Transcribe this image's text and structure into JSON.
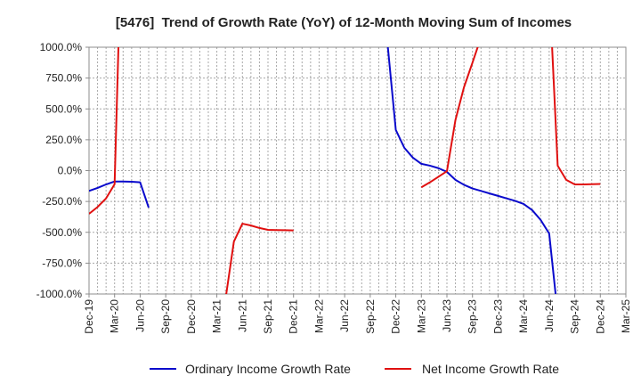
{
  "chart_data": {
    "type": "line",
    "title": "[5476]  Trend of Growth Rate (YoY) of 12-Month Moving Sum of Incomes",
    "xlabel": "",
    "ylabel": "",
    "xlim": [
      "Dec-19",
      "Mar-25"
    ],
    "ylim": [
      -1000,
      1000
    ],
    "grid": true,
    "legend": "bottom",
    "y_ticks": [
      {
        "value": 1000,
        "label": "1000.0%"
      },
      {
        "value": 750,
        "label": "750.0%"
      },
      {
        "value": 500,
        "label": "500.0%"
      },
      {
        "value": 250,
        "label": "250.0%"
      },
      {
        "value": 0,
        "label": "0.0%"
      },
      {
        "value": -250,
        "label": "-250.0%"
      },
      {
        "value": -500,
        "label": "-500.0%"
      },
      {
        "value": -750,
        "label": "-750.0%"
      },
      {
        "value": -1000,
        "label": "-1000.0%"
      }
    ],
    "x_tick_labels": [
      "Dec-19",
      "Mar-20",
      "Jun-20",
      "Sep-20",
      "Dec-20",
      "Mar-21",
      "Jun-21",
      "Sep-21",
      "Dec-21",
      "Mar-22",
      "Jun-22",
      "Sep-22",
      "Dec-22",
      "Mar-23",
      "Jun-23",
      "Sep-23",
      "Dec-23",
      "Mar-24",
      "Jun-24",
      "Sep-24",
      "Dec-24",
      "Mar-25"
    ],
    "x": [
      "Dec-19",
      "Jan-20",
      "Feb-20",
      "Mar-20",
      "Apr-20",
      "May-20",
      "Jun-20",
      "Jul-20",
      "Aug-20",
      "Sep-20",
      "Oct-20",
      "Nov-20",
      "Dec-20",
      "Jan-21",
      "Feb-21",
      "Mar-21",
      "Apr-21",
      "May-21",
      "Jun-21",
      "Jul-21",
      "Aug-21",
      "Sep-21",
      "Oct-21",
      "Nov-21",
      "Dec-21",
      "Jan-22",
      "Feb-22",
      "Mar-22",
      "Apr-22",
      "May-22",
      "Jun-22",
      "Jul-22",
      "Aug-22",
      "Sep-22",
      "Oct-22",
      "Nov-22",
      "Dec-22",
      "Jan-23",
      "Feb-23",
      "Mar-23",
      "Apr-23",
      "May-23",
      "Jun-23",
      "Jul-23",
      "Aug-23",
      "Sep-23",
      "Oct-23",
      "Nov-23",
      "Dec-23",
      "Jan-24",
      "Feb-24",
      "Mar-24",
      "Apr-24",
      "May-24",
      "Jun-24",
      "Jul-24",
      "Aug-24",
      "Sep-24",
      "Oct-24",
      "Nov-24",
      "Dec-24"
    ],
    "series": [
      {
        "name": "Ordinary Income Growth Rate",
        "color": "#0a0acc",
        "values": [
          -165,
          -140,
          -112,
          -88,
          -88,
          -90,
          -95,
          -300,
          null,
          null,
          null,
          null,
          null,
          null,
          null,
          null,
          null,
          null,
          null,
          null,
          null,
          null,
          null,
          null,
          null,
          null,
          null,
          null,
          null,
          null,
          null,
          null,
          null,
          null,
          null,
          1050,
          330,
          185,
          105,
          55,
          40,
          20,
          -10,
          -75,
          -115,
          -145,
          -165,
          -185,
          -205,
          -225,
          -245,
          -270,
          -320,
          -400,
          -510,
          -1160,
          null,
          null,
          null,
          null,
          null
        ]
      },
      {
        "name": "Net Income Growth Rate",
        "color": "#e01010",
        "values": [
          -350,
          -295,
          -225,
          -110,
          2350,
          null,
          null,
          null,
          null,
          null,
          null,
          null,
          null,
          null,
          null,
          null,
          -1050,
          -575,
          -430,
          -445,
          -465,
          -480,
          -482,
          -483,
          -485,
          null,
          null,
          null,
          null,
          null,
          null,
          null,
          null,
          null,
          null,
          null,
          null,
          null,
          null,
          -135,
          -95,
          -50,
          -5,
          410,
          675,
          875,
          1080,
          null,
          null,
          null,
          null,
          null,
          null,
          null,
          1500,
          40,
          -75,
          -112,
          -112,
          -110,
          -108
        ]
      }
    ]
  }
}
